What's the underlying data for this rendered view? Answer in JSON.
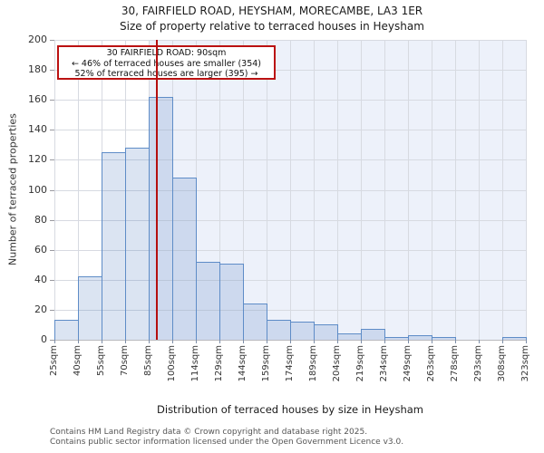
{
  "title": {
    "line1": "30, FAIRFIELD ROAD, HEYSHAM, MORECAMBE, LA3 1ER",
    "line2": "Size of property relative to terraced houses in Heysham"
  },
  "annotation": {
    "line1": "30 FAIRFIELD ROAD: 90sqm",
    "line2": "← 46% of terraced houses are smaller (354)",
    "line3": "52% of terraced houses are larger (395) →"
  },
  "chart_data": {
    "type": "bar",
    "title": "Size of property relative to terraced houses in Heysham",
    "xlabel": "Distribution of terraced houses by size in Heysham",
    "ylabel": "Number of terraced properties",
    "ylim": [
      0,
      200
    ],
    "y_ticks": [
      0,
      20,
      40,
      60,
      80,
      100,
      120,
      140,
      160,
      180,
      200
    ],
    "bin_edges_sqm": [
      25,
      40,
      55,
      70,
      85,
      100,
      114,
      129,
      144,
      159,
      174,
      189,
      204,
      219,
      234,
      249,
      263,
      278,
      293,
      308,
      323
    ],
    "x_tick_labels": [
      "25sqm",
      "40sqm",
      "55sqm",
      "70sqm",
      "85sqm",
      "100sqm",
      "114sqm",
      "129sqm",
      "144sqm",
      "159sqm",
      "174sqm",
      "189sqm",
      "204sqm",
      "219sqm",
      "234sqm",
      "249sqm",
      "263sqm",
      "278sqm",
      "293sqm",
      "308sqm",
      "323sqm"
    ],
    "values": [
      13,
      42,
      125,
      128,
      162,
      108,
      52,
      51,
      24,
      13,
      12,
      10,
      4,
      7,
      2,
      3,
      2,
      0,
      0,
      2
    ],
    "marker": {
      "value_sqm": 90,
      "label": "30 FAIRFIELD ROAD: 90sqm",
      "smaller_pct": 46,
      "smaller_count": 354,
      "larger_pct": 52,
      "larger_count": 395
    },
    "shaded_region": {
      "from_sqm": 85,
      "to_sqm": 323
    },
    "grid": true,
    "colors": {
      "bar_fill": "#dae4f3",
      "bar_border": "#5e8cc7",
      "marker_line": "#b50f0f",
      "annotation_border": "#bb1111",
      "shade_background": "#edf1fa",
      "gridline": "#d7dae1"
    }
  },
  "footer": {
    "line1": "Contains HM Land Registry data © Crown copyright and database right 2025.",
    "line2": "Contains public sector information licensed under the Open Government Licence v3.0."
  }
}
